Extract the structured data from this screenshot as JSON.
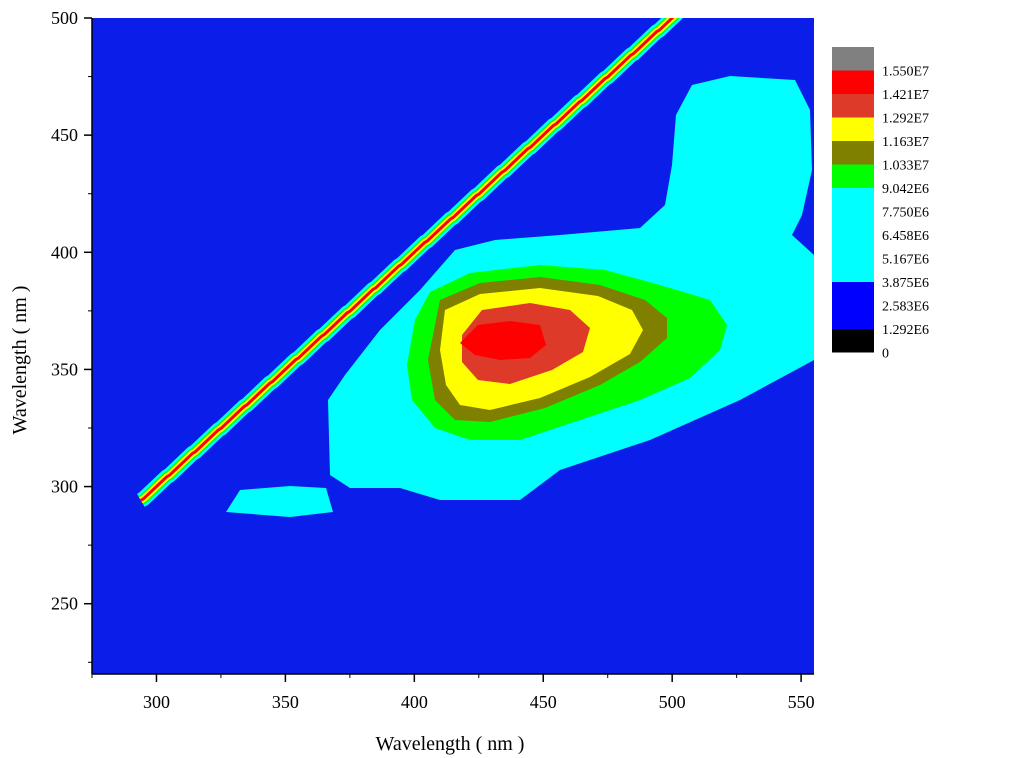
{
  "chart_data": {
    "type": "contour",
    "xlabel": "Wavelength ( nm )",
    "ylabel": "Wavelength ( nm )",
    "xlim": [
      275,
      555
    ],
    "ylim": [
      220,
      500
    ],
    "xticks": [
      300,
      350,
      400,
      450,
      500,
      550
    ],
    "yticks": [
      250,
      300,
      350,
      400,
      450,
      500
    ],
    "legend_position": "right",
    "levels": [
      {
        "label": "1.550E7",
        "color": "#808080"
      },
      {
        "label": "1.421E7",
        "color": "#ff0000"
      },
      {
        "label": "1.292E7",
        "color": "#dd3a2a"
      },
      {
        "label": "1.163E7",
        "color": "#ffff00"
      },
      {
        "label": "1.033E7",
        "color": "#7f7f00"
      },
      {
        "label": "9.042E6",
        "color": "#00ff00"
      },
      {
        "label": "7.750E6",
        "color": "#00ffff"
      },
      {
        "label": "6.458E6",
        "color": "#00ffff"
      },
      {
        "label": "5.167E6",
        "color": "#00ffff"
      },
      {
        "label": "3.875E6",
        "color": "#00ffff"
      },
      {
        "label": "2.583E6",
        "color": "#0000ff"
      },
      {
        "label": "1.292E6",
        "color": "#0000ff"
      },
      {
        "label": "0",
        "color": "#000000"
      }
    ],
    "background_color": "#0b1de8",
    "peak": {
      "x": 440,
      "y": 362
    }
  }
}
